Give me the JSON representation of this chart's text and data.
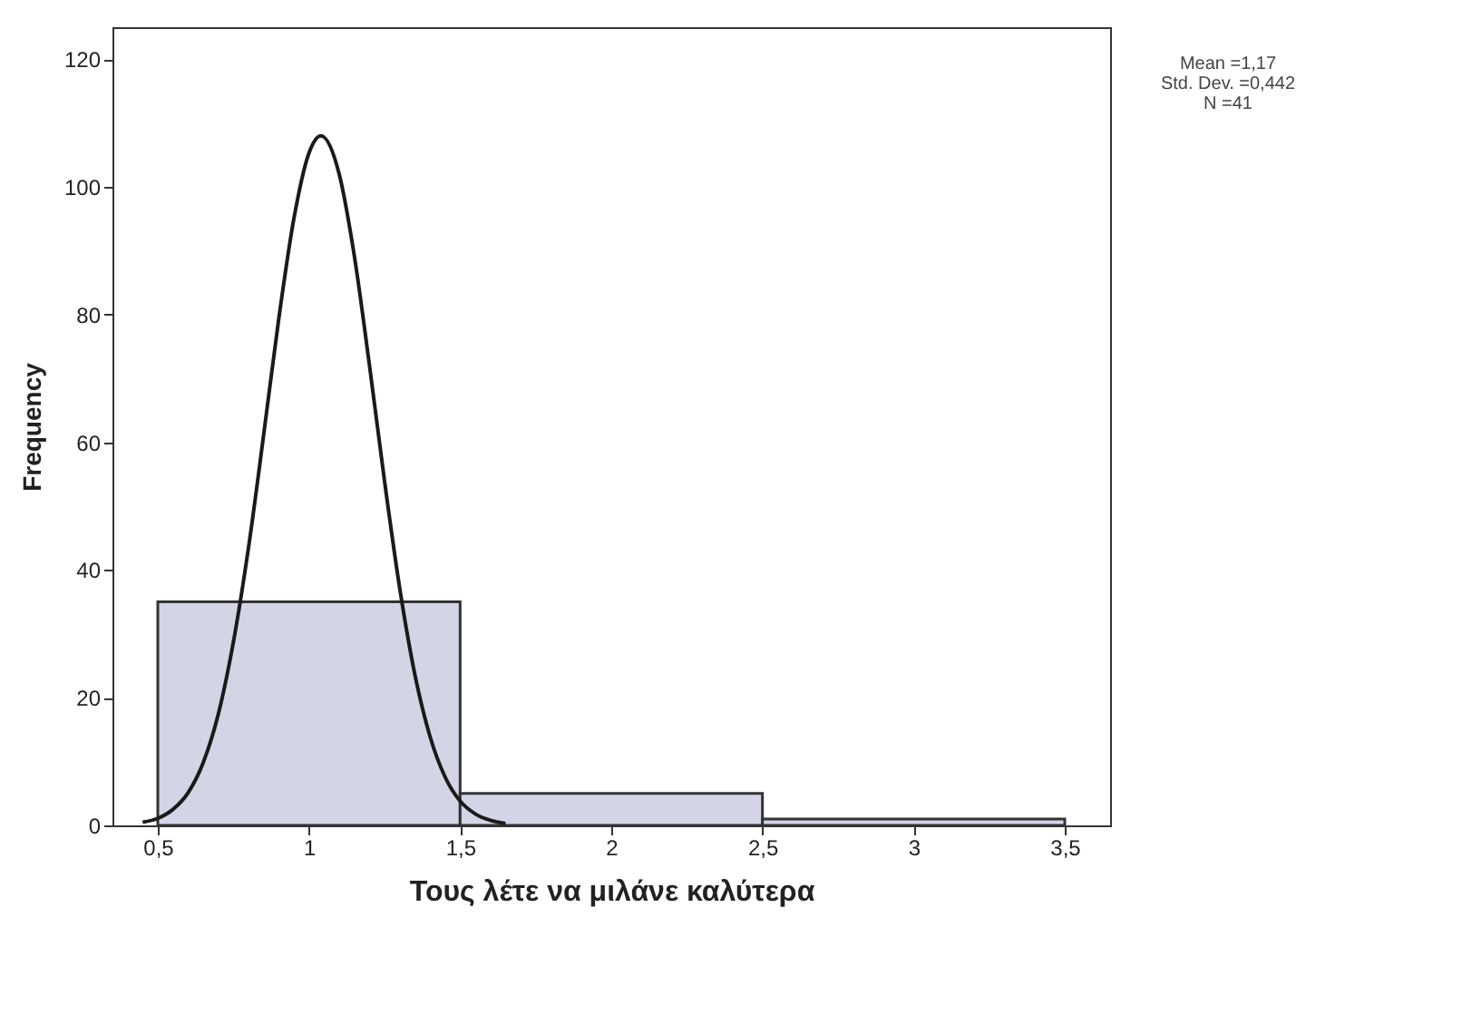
{
  "chart_data": {
    "type": "histogram",
    "xlabel": "Τους λέτε να μιλάνε καλύτερα",
    "ylabel": "Frequency",
    "xlim": [
      0.35,
      3.65
    ],
    "ylim": [
      0,
      125
    ],
    "xticks": [
      {
        "value": 0.5,
        "label": "0,5"
      },
      1,
      {
        "value": 1.5,
        "label": "1,5"
      },
      2,
      {
        "value": 2.5,
        "label": "2,5"
      },
      3,
      {
        "value": 3.5,
        "label": "3,5"
      }
    ],
    "yticks": [
      0,
      20,
      40,
      60,
      80,
      100,
      120
    ],
    "annotations": [
      "Mean =1,17",
      "Std. Dev. =0,442",
      "N =41"
    ],
    "series": [
      {
        "color": "#d3d5e6",
        "bins": [
          0.5,
          1.5,
          2.5,
          3.5
        ],
        "values": [
          35,
          5,
          1
        ]
      },
      {
        "type": "line",
        "color": "#1a1a1a",
        "x": [
          0.45,
          0.5,
          0.55,
          0.6,
          0.65,
          0.7,
          0.75,
          0.8,
          0.85,
          0.9,
          0.95,
          1.0,
          1.04,
          1.1,
          1.15,
          1.2,
          1.25,
          1.3,
          1.35,
          1.4,
          1.45,
          1.5,
          1.55,
          1.6,
          1.65
        ],
        "values": [
          0.5,
          1.1,
          2.5,
          5.1,
          9.8,
          17.4,
          28.7,
          43.5,
          61.1,
          79.3,
          95.0,
          105.3,
          108,
          102.0,
          89.2,
          72.1,
          53.9,
          37.2,
          23.7,
          14.0,
          7.6,
          3.8,
          1.8,
          0.8,
          0.3
        ]
      }
    ]
  }
}
